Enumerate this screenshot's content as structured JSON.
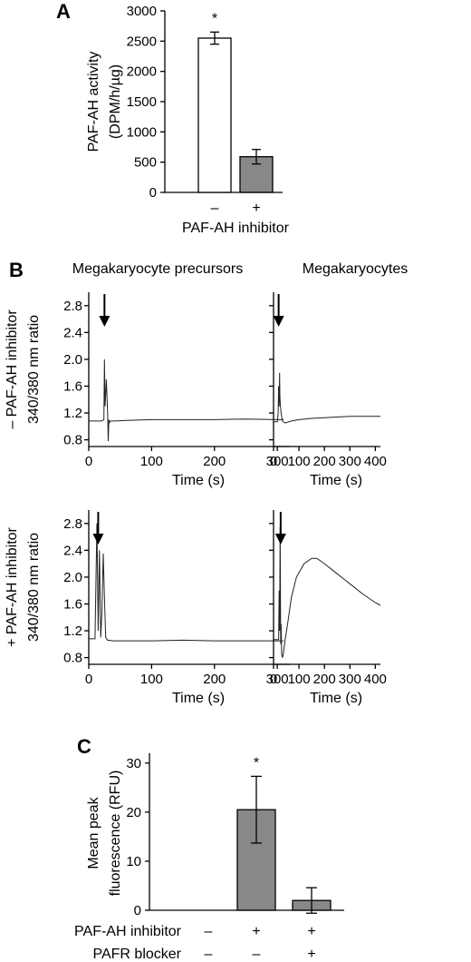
{
  "chart_data": [
    {
      "panel": "A",
      "type": "bar",
      "categories": [
        "–",
        "+"
      ],
      "values": [
        2550,
        590
      ],
      "errors": [
        100,
        120
      ],
      "significance": [
        "*",
        ""
      ],
      "bar_colors": [
        "#ffffff",
        "#888888"
      ],
      "ylabel": "PAF-AH activity",
      "ylabel_unit": "(DPM/h/µg)",
      "xlabel": "PAF-AH inhibitor",
      "ylim": [
        0,
        3000
      ],
      "yticks": [
        0,
        500,
        1000,
        1500,
        2000,
        2500,
        3000
      ]
    },
    {
      "panel": "B",
      "type": "line",
      "column_titles": [
        "Megakaryocyte precursors",
        "Megakaryocytes"
      ],
      "row_labels": [
        "– PAF-AH inhibitor",
        "+ PAF-AH inhibitor"
      ],
      "ylabel": "340/380 nm ratio",
      "xlabel": "Time (s)",
      "ylim": [
        0.7,
        3.0
      ],
      "yticks": [
        "0.8",
        "1.2",
        "1.6",
        "2.0",
        "2.4",
        "2.8"
      ],
      "traces": [
        {
          "row": 0,
          "col": 0,
          "arrow_time": 25,
          "xlim": [
            0,
            320
          ],
          "xticks": [
            0,
            100,
            200,
            300
          ],
          "x": [
            0,
            20,
            24,
            25,
            26,
            28,
            30,
            31,
            32,
            33,
            35,
            40,
            60,
            100,
            150,
            200,
            250,
            300,
            310
          ],
          "y": [
            1.08,
            1.08,
            1.1,
            2.0,
            1.3,
            1.7,
            1.2,
            0.78,
            1.1,
            1.06,
            1.08,
            1.08,
            1.09,
            1.1,
            1.1,
            1.1,
            1.11,
            1.1,
            1.1
          ]
        },
        {
          "row": 0,
          "col": 1,
          "arrow_time": 20,
          "xlim": [
            0,
            420
          ],
          "xticks": [
            0,
            100,
            200,
            300,
            400
          ],
          "x": [
            0,
            15,
            18,
            20,
            22,
            24,
            25,
            27,
            30,
            32,
            35,
            45,
            70,
            100,
            150,
            200,
            250,
            300,
            350,
            400,
            420
          ],
          "y": [
            1.07,
            1.07,
            1.2,
            1.6,
            1.3,
            1.8,
            1.45,
            1.3,
            1.2,
            1.15,
            1.08,
            1.05,
            1.08,
            1.1,
            1.12,
            1.13,
            1.14,
            1.15,
            1.15,
            1.15,
            1.15
          ]
        },
        {
          "row": 1,
          "col": 0,
          "arrow_time": 15,
          "xlim": [
            0,
            320
          ],
          "xticks": [
            0,
            100,
            200,
            300
          ],
          "x": [
            0,
            10,
            13,
            15,
            17,
            19,
            21,
            23,
            25,
            27,
            30,
            40,
            60,
            100,
            150,
            200,
            250,
            300,
            310
          ],
          "y": [
            1.08,
            1.08,
            2.8,
            1.2,
            2.4,
            1.1,
            1.5,
            2.35,
            1.7,
            1.1,
            1.06,
            1.05,
            1.05,
            1.05,
            1.06,
            1.05,
            1.05,
            1.05,
            1.05
          ]
        },
        {
          "row": 1,
          "col": 1,
          "arrow_time": 28,
          "xlim": [
            0,
            420
          ],
          "xticks": [
            0,
            100,
            200,
            300,
            400
          ],
          "x": [
            0,
            20,
            22,
            24,
            26,
            28,
            30,
            32,
            35,
            38,
            45,
            55,
            70,
            90,
            120,
            150,
            170,
            200,
            250,
            300,
            350,
            400,
            420
          ],
          "y": [
            1.07,
            1.07,
            1.8,
            1.2,
            2.75,
            1.0,
            1.3,
            0.85,
            0.8,
            0.85,
            1.05,
            1.3,
            1.7,
            2.0,
            2.2,
            2.28,
            2.28,
            2.2,
            2.05,
            1.9,
            1.75,
            1.62,
            1.58
          ]
        }
      ]
    },
    {
      "panel": "C",
      "type": "bar",
      "groups": 3,
      "values": [
        0,
        20.5,
        2.0
      ],
      "errors": [
        0,
        6.8,
        2.6
      ],
      "significance": [
        "",
        "*",
        ""
      ],
      "bar_color": "#888888",
      "ylabel": "Mean peak",
      "ylabel_unit": "fluorescence (RFU)",
      "ylim": [
        0,
        32
      ],
      "yticks": [
        0,
        10,
        20,
        30
      ],
      "factor_rows": [
        {
          "label": "PAF-AH inhibitor",
          "signs": [
            "–",
            "+",
            "+"
          ]
        },
        {
          "label": "PAFR blocker",
          "signs": [
            "–",
            "–",
            "+"
          ]
        }
      ]
    }
  ]
}
